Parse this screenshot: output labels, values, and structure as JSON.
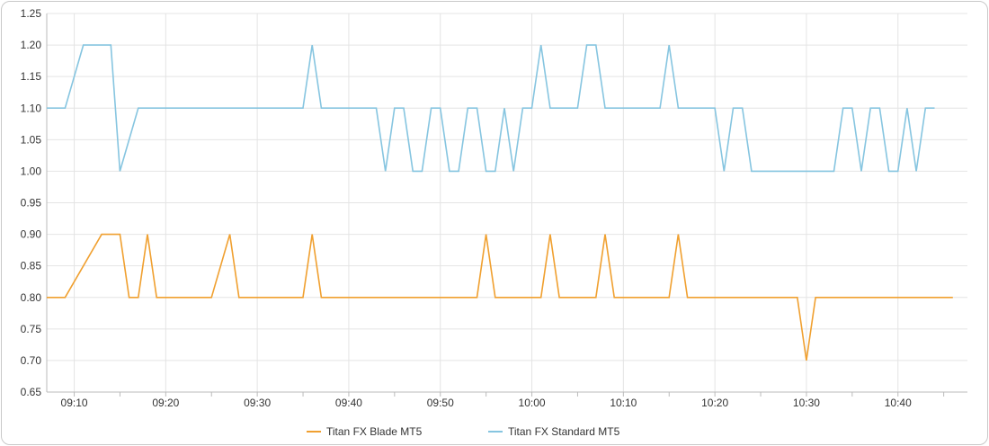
{
  "chart_data": {
    "type": "line",
    "title": "",
    "xlabel": "",
    "ylabel": "",
    "x_unit": "minutes",
    "x_range": [
      "09:07",
      "10:47"
    ],
    "ylim": [
      0.65,
      1.25
    ],
    "y_ticks": [
      0.65,
      0.7,
      0.75,
      0.8,
      0.85,
      0.9,
      0.95,
      1.0,
      1.05,
      1.1,
      1.15,
      1.2,
      1.25
    ],
    "x_tick_labels": [
      "09:10",
      "09:20",
      "09:30",
      "09:40",
      "09:50",
      "10:00",
      "10:10",
      "10:20",
      "10:30",
      "10:40"
    ],
    "grid": true,
    "legend_position": "bottom-center",
    "series": [
      {
        "name": "Titan FX Blade MT5",
        "color": "#f0a030",
        "points": [
          [
            "09:07",
            0.8
          ],
          [
            "09:09",
            0.8
          ],
          [
            "09:13",
            0.9
          ],
          [
            "09:15",
            0.9
          ],
          [
            "09:16",
            0.8
          ],
          [
            "09:17",
            0.8
          ],
          [
            "09:18",
            0.9
          ],
          [
            "09:19",
            0.8
          ],
          [
            "09:25",
            0.8
          ],
          [
            "09:27",
            0.9
          ],
          [
            "09:28",
            0.8
          ],
          [
            "09:35",
            0.8
          ],
          [
            "09:36",
            0.9
          ],
          [
            "09:37",
            0.8
          ],
          [
            "09:54",
            0.8
          ],
          [
            "09:55",
            0.9
          ],
          [
            "09:56",
            0.8
          ],
          [
            "10:01",
            0.8
          ],
          [
            "10:02",
            0.9
          ],
          [
            "10:03",
            0.8
          ],
          [
            "10:07",
            0.8
          ],
          [
            "10:08",
            0.9
          ],
          [
            "10:09",
            0.8
          ],
          [
            "10:15",
            0.8
          ],
          [
            "10:16",
            0.9
          ],
          [
            "10:17",
            0.8
          ],
          [
            "10:29",
            0.8
          ],
          [
            "10:30",
            0.7
          ],
          [
            "10:31",
            0.8
          ],
          [
            "10:46",
            0.8
          ]
        ]
      },
      {
        "name": "Titan FX Standard MT5",
        "color": "#86c5e0",
        "points": [
          [
            "09:07",
            1.1
          ],
          [
            "09:09",
            1.1
          ],
          [
            "09:11",
            1.2
          ],
          [
            "09:14",
            1.2
          ],
          [
            "09:15",
            1.0
          ],
          [
            "09:17",
            1.1
          ],
          [
            "09:35",
            1.1
          ],
          [
            "09:36",
            1.2
          ],
          [
            "09:37",
            1.1
          ],
          [
            "09:43",
            1.1
          ],
          [
            "09:44",
            1.0
          ],
          [
            "09:45",
            1.1
          ],
          [
            "09:46",
            1.1
          ],
          [
            "09:47",
            1.0
          ],
          [
            "09:48",
            1.0
          ],
          [
            "09:49",
            1.1
          ],
          [
            "09:50",
            1.1
          ],
          [
            "09:51",
            1.0
          ],
          [
            "09:52",
            1.0
          ],
          [
            "09:53",
            1.1
          ],
          [
            "09:54",
            1.1
          ],
          [
            "09:55",
            1.0
          ],
          [
            "09:56",
            1.0
          ],
          [
            "09:57",
            1.1
          ],
          [
            "09:58",
            1.0
          ],
          [
            "09:59",
            1.1
          ],
          [
            "10:00",
            1.1
          ],
          [
            "10:01",
            1.2
          ],
          [
            "10:02",
            1.1
          ],
          [
            "10:05",
            1.1
          ],
          [
            "10:06",
            1.2
          ],
          [
            "10:07",
            1.2
          ],
          [
            "10:08",
            1.1
          ],
          [
            "10:14",
            1.1
          ],
          [
            "10:15",
            1.2
          ],
          [
            "10:16",
            1.1
          ],
          [
            "10:20",
            1.1
          ],
          [
            "10:21",
            1.0
          ],
          [
            "10:22",
            1.1
          ],
          [
            "10:23",
            1.1
          ],
          [
            "10:24",
            1.0
          ],
          [
            "10:33",
            1.0
          ],
          [
            "10:34",
            1.1
          ],
          [
            "10:35",
            1.1
          ],
          [
            "10:36",
            1.0
          ],
          [
            "10:37",
            1.1
          ],
          [
            "10:38",
            1.1
          ],
          [
            "10:39",
            1.0
          ],
          [
            "10:40",
            1.0
          ],
          [
            "10:41",
            1.1
          ],
          [
            "10:42",
            1.0
          ],
          [
            "10:43",
            1.1
          ],
          [
            "10:44",
            1.1
          ]
        ]
      }
    ]
  }
}
